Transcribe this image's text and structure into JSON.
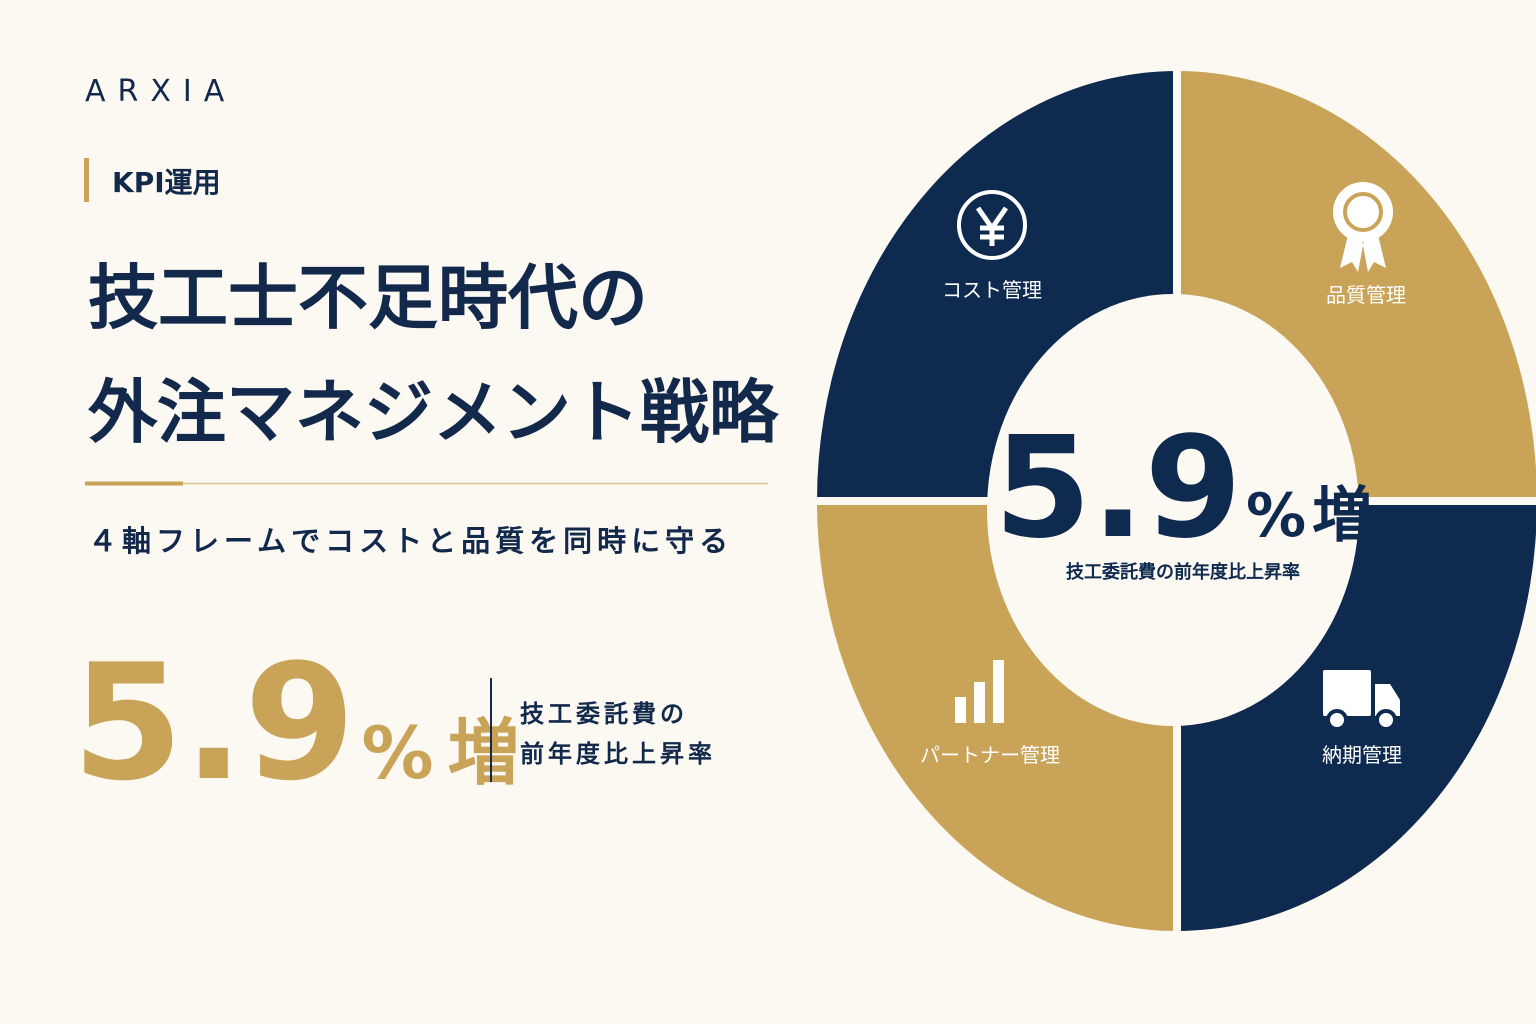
{
  "brand": "ARXIA",
  "tag": "KPI運用",
  "title": [
    "技工士不足時代の",
    "外注マネジメント戦略"
  ],
  "subtitle": "４軸フレームでコストと品質を同時に守る",
  "stat": {
    "value": "5.9",
    "unit": "%",
    "suffix": "増",
    "label": [
      "技工委託費の",
      "前年度比上昇率"
    ]
  },
  "ring": {
    "segments": [
      "コスト管理",
      "品質管理",
      "パートナー管理",
      "納期管理"
    ],
    "center": {
      "value": "5.9",
      "unit": "%",
      "suffix": "増",
      "label": "技工委託費の前年度比上昇率"
    }
  }
}
